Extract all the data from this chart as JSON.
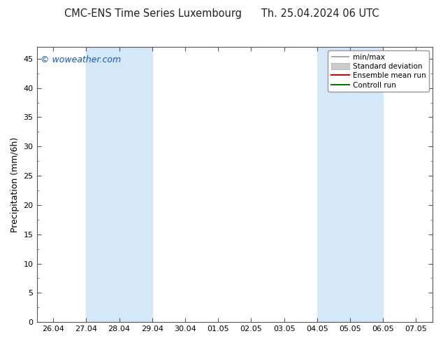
{
  "title": "CMC-ENS Time Series Luxembourg",
  "title2": "Th. 25.04.2024 06 UTC",
  "ylabel": "Precipitation (mm/6h)",
  "ylim": [
    0,
    47
  ],
  "yticks": [
    0,
    5,
    10,
    15,
    20,
    25,
    30,
    35,
    40,
    45
  ],
  "xtick_labels": [
    "26.04",
    "27.04",
    "28.04",
    "29.04",
    "30.04",
    "01.05",
    "02.05",
    "03.05",
    "04.05",
    "05.05",
    "06.05",
    "07.05"
  ],
  "xtick_positions": [
    0,
    1,
    2,
    3,
    4,
    5,
    6,
    7,
    8,
    9,
    10,
    11
  ],
  "shaded_bands": [
    {
      "xmin": 1.0,
      "xmax": 3.0,
      "color": "#d4e8f7"
    },
    {
      "xmin": 8.0,
      "xmax": 10.0,
      "color": "#d4e8f7"
    }
  ],
  "watermark": "© woweather.com",
  "watermark_color": "#1155cc",
  "background_color": "#ffffff",
  "plot_bg_color": "#ffffff",
  "legend_items": [
    {
      "label": "min/max",
      "color": "#999999",
      "lw": 1.2
    },
    {
      "label": "Standard deviation",
      "color": "#cccccc",
      "lw": 8
    },
    {
      "label": "Ensemble mean run",
      "color": "#dd0000",
      "lw": 1.5
    },
    {
      "label": "Controll run",
      "color": "#007700",
      "lw": 1.5
    }
  ],
  "title_fontsize": 10.5,
  "ylabel_fontsize": 9,
  "tick_fontsize": 8,
  "watermark_fontsize": 9,
  "legend_fontsize": 7.5
}
